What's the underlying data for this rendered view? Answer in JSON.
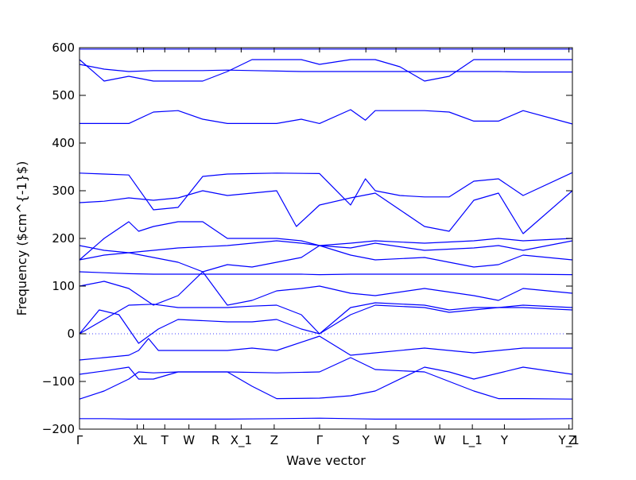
{
  "chart_data": {
    "type": "line",
    "title": "",
    "xlabel": "Wave vector",
    "ylabel": "Frequency ($cm^{-1}$)",
    "ylim": [
      -200,
      600
    ],
    "yticks": [
      -200,
      -100,
      0,
      100,
      200,
      300,
      400,
      500,
      600
    ],
    "xlim": [
      0,
      1
    ],
    "xtick_labels": [
      {
        "label": "Γ",
        "pos": 0.0
      },
      {
        "label": "X",
        "pos": 0.117
      },
      {
        "label": "L",
        "pos": 0.13
      },
      {
        "label": "T",
        "pos": 0.173
      },
      {
        "label": "W",
        "pos": 0.222
      },
      {
        "label": "R",
        "pos": 0.276
      },
      {
        "label": "X_1",
        "pos": 0.328
      },
      {
        "label": "Z",
        "pos": 0.395
      },
      {
        "label": "Γ",
        "pos": 0.487
      },
      {
        "label": "Y",
        "pos": 0.581
      },
      {
        "label": "S",
        "pos": 0.642
      },
      {
        "label": "W",
        "pos": 0.731
      },
      {
        "label": "L_1",
        "pos": 0.797
      },
      {
        "label": "Y",
        "pos": 0.862
      },
      {
        "label": "Y_1",
        "pos": 0.993
      },
      {
        "label": "Z",
        "pos": 1.0
      }
    ],
    "zero_line": true,
    "grid": false,
    "legend": "none",
    "line_color": "#0000ff",
    "series": [
      {
        "x": [
          0,
          0.05,
          0.1,
          0.2,
          0.3,
          0.4,
          0.487,
          0.55,
          0.6,
          0.7,
          0.8,
          0.9,
          1.0
        ],
        "values": [
          -178,
          -178,
          -179,
          -179,
          -179,
          -178,
          -177,
          -178,
          -179,
          -179,
          -179,
          -179,
          -178
        ]
      },
      {
        "x": [
          0,
          0.05,
          0.1,
          0.12,
          0.15,
          0.2,
          0.3,
          0.4,
          0.487,
          0.55,
          0.6,
          0.7,
          0.8,
          0.85,
          0.9,
          1.0
        ],
        "values": [
          -137,
          -120,
          -95,
          -80,
          -82,
          -80,
          -80,
          -82,
          -80,
          -50,
          -75,
          -80,
          -120,
          -136,
          -136,
          -137
        ]
      },
      {
        "x": [
          0,
          0.05,
          0.1,
          0.12,
          0.15,
          0.2,
          0.25,
          0.3,
          0.35,
          0.4,
          0.487,
          0.55,
          0.6,
          0.7,
          0.75,
          0.8,
          0.9,
          1.0
        ],
        "values": [
          -85,
          -78,
          -70,
          -95,
          -95,
          -80,
          -80,
          -80,
          -110,
          -136,
          -135,
          -130,
          -120,
          -70,
          -80,
          -95,
          -70,
          -85
        ]
      },
      {
        "x": [
          0,
          0.1,
          0.12,
          0.14,
          0.16,
          0.2,
          0.3,
          0.35,
          0.4,
          0.487,
          0.55,
          0.6,
          0.7,
          0.8,
          0.85,
          0.9,
          1.0
        ],
        "values": [
          -55,
          -45,
          -35,
          -10,
          -35,
          -35,
          -35,
          -30,
          -35,
          -5,
          -45,
          -40,
          -30,
          -40,
          -35,
          -30,
          -30
        ]
      },
      {
        "x": [
          0,
          0.05,
          0.1,
          0.15,
          0.2,
          0.3,
          0.35,
          0.4,
          0.45,
          0.487,
          0.55,
          0.6,
          0.7,
          0.75,
          0.8,
          0.85,
          0.9,
          1.0
        ],
        "values": [
          0,
          30,
          60,
          62,
          55,
          55,
          58,
          60,
          40,
          0,
          55,
          65,
          60,
          50,
          55,
          55,
          55,
          50
        ]
      },
      {
        "x": [
          0,
          0.04,
          0.08,
          0.12,
          0.16,
          0.2,
          0.3,
          0.35,
          0.4,
          0.45,
          0.487,
          0.55,
          0.6,
          0.7,
          0.75,
          0.8,
          0.9,
          1.0
        ],
        "values": [
          0,
          50,
          40,
          -20,
          10,
          30,
          25,
          25,
          30,
          10,
          0,
          40,
          60,
          55,
          45,
          50,
          60,
          55
        ]
      },
      {
        "x": [
          0,
          0.05,
          0.1,
          0.15,
          0.2,
          0.25,
          0.3,
          0.35,
          0.4,
          0.45,
          0.487,
          0.55,
          0.6,
          0.7,
          0.8,
          0.85,
          0.9,
          1.0
        ],
        "values": [
          100,
          110,
          95,
          60,
          80,
          130,
          60,
          70,
          90,
          95,
          100,
          85,
          80,
          95,
          80,
          70,
          95,
          85
        ]
      },
      {
        "x": [
          0,
          0.05,
          0.1,
          0.15,
          0.2,
          0.25,
          0.3,
          0.35,
          0.4,
          0.45,
          0.487,
          0.55,
          0.6,
          0.7,
          0.8,
          0.85,
          0.9,
          1.0
        ],
        "values": [
          130,
          128,
          126,
          125,
          125,
          125,
          125,
          125,
          125,
          125,
          124,
          125,
          125,
          125,
          125,
          125,
          125,
          124
        ]
      },
      {
        "x": [
          0,
          0.05,
          0.1,
          0.15,
          0.2,
          0.25,
          0.3,
          0.35,
          0.4,
          0.45,
          0.487,
          0.55,
          0.6,
          0.7,
          0.8,
          0.85,
          0.9,
          1.0
        ],
        "values": [
          155,
          165,
          170,
          160,
          150,
          130,
          145,
          140,
          150,
          160,
          185,
          165,
          155,
          160,
          140,
          145,
          165,
          155
        ]
      },
      {
        "x": [
          0,
          0.05,
          0.1,
          0.15,
          0.2,
          0.3,
          0.35,
          0.4,
          0.45,
          0.487,
          0.55,
          0.6,
          0.7,
          0.8,
          0.85,
          0.9,
          1.0
        ],
        "values": [
          185,
          175,
          170,
          175,
          180,
          185,
          190,
          195,
          190,
          185,
          190,
          195,
          190,
          195,
          200,
          195,
          200
        ]
      },
      {
        "x": [
          0,
          0.05,
          0.1,
          0.12,
          0.15,
          0.2,
          0.25,
          0.3,
          0.35,
          0.4,
          0.45,
          0.487,
          0.55,
          0.6,
          0.7,
          0.8,
          0.85,
          0.9,
          1.0
        ],
        "values": [
          155,
          200,
          235,
          215,
          225,
          235,
          235,
          200,
          200,
          200,
          195,
          185,
          180,
          190,
          175,
          180,
          185,
          175,
          195
        ]
      },
      {
        "x": [
          0,
          0.05,
          0.1,
          0.15,
          0.2,
          0.25,
          0.3,
          0.35,
          0.4,
          0.44,
          0.487,
          0.55,
          0.6,
          0.65,
          0.7,
          0.75,
          0.8,
          0.85,
          0.9,
          1.0
        ],
        "values": [
          275,
          278,
          285,
          280,
          285,
          300,
          290,
          295,
          300,
          225,
          270,
          285,
          295,
          260,
          225,
          215,
          280,
          295,
          210,
          300
        ]
      },
      {
        "x": [
          0,
          0.05,
          0.1,
          0.15,
          0.2,
          0.25,
          0.3,
          0.35,
          0.4,
          0.487,
          0.55,
          0.58,
          0.6,
          0.65,
          0.7,
          0.75,
          0.8,
          0.85,
          0.9,
          1.0
        ],
        "values": [
          337,
          335,
          333,
          260,
          265,
          330,
          335,
          336,
          337,
          336,
          270,
          325,
          300,
          290,
          287,
          287,
          320,
          325,
          290,
          338
        ]
      },
      {
        "x": [
          0,
          0.05,
          0.1,
          0.15,
          0.2,
          0.25,
          0.3,
          0.35,
          0.4,
          0.45,
          0.487,
          0.55,
          0.58,
          0.6,
          0.65,
          0.7,
          0.75,
          0.8,
          0.85,
          0.9,
          1.0
        ],
        "values": [
          441,
          441,
          441,
          465,
          468,
          450,
          441,
          441,
          441,
          450,
          441,
          470,
          448,
          468,
          468,
          468,
          465,
          446,
          446,
          468,
          440
        ]
      },
      {
        "x": [
          0,
          0.05,
          0.1,
          0.15,
          0.2,
          0.25,
          0.3,
          0.35,
          0.4,
          0.45,
          0.487,
          0.55,
          0.6,
          0.65,
          0.7,
          0.75,
          0.8,
          0.85,
          0.9,
          1.0
        ],
        "values": [
          565,
          555,
          550,
          552,
          552,
          552,
          553,
          552,
          551,
          550,
          550,
          550,
          550,
          550,
          550,
          550,
          550,
          550,
          549,
          549
        ]
      },
      {
        "x": [
          0,
          0.05,
          0.1,
          0.15,
          0.2,
          0.25,
          0.3,
          0.35,
          0.4,
          0.45,
          0.487,
          0.55,
          0.6,
          0.65,
          0.7,
          0.75,
          0.8,
          0.85,
          0.9,
          1.0
        ],
        "values": [
          575,
          530,
          540,
          530,
          530,
          530,
          550,
          575,
          575,
          575,
          565,
          575,
          575,
          560,
          530,
          540,
          575,
          575,
          575,
          575
        ]
      },
      {
        "x": [
          0,
          0.1,
          0.2,
          0.3,
          0.4,
          0.487,
          0.6,
          0.7,
          0.8,
          0.9,
          1.0
        ],
        "values": [
          597,
          597,
          597,
          597,
          597,
          597,
          597,
          597,
          597,
          597,
          597
        ]
      }
    ]
  }
}
